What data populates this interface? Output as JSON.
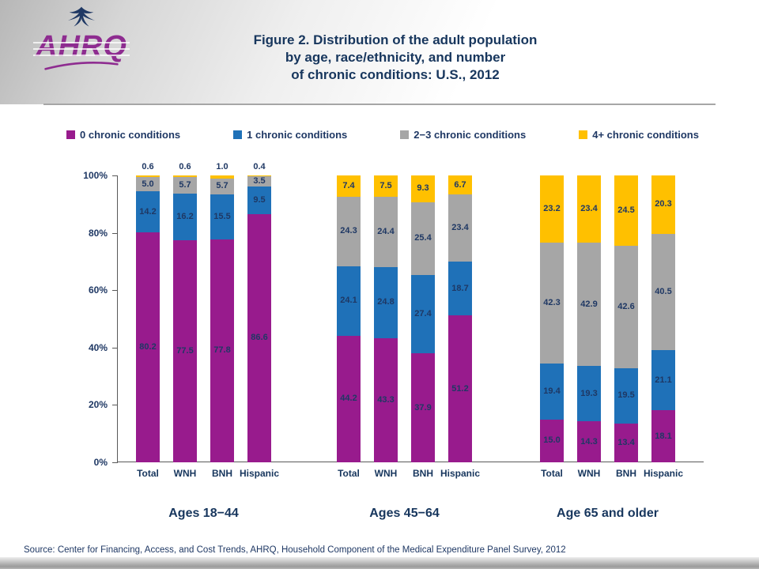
{
  "colors": {
    "brand_purple": "#8E2C90",
    "title_navy": "#17365D",
    "label_navy": "#1F3864",
    "series": [
      "#981B8D",
      "#1F71B8",
      "#A6A6A6",
      "#FFC000"
    ]
  },
  "header": {
    "logo_text": "AHRQ",
    "title_lines": [
      "Figure 2. Distribution of the adult population",
      "by age, race/ethnicity, and number",
      "of chronic conditions: U.S., 2012"
    ]
  },
  "legend": [
    {
      "label": "0 chronic conditions",
      "color": "#981B8D"
    },
    {
      "label": "1 chronic conditions",
      "color": "#1F71B8"
    },
    {
      "label": "2−3 chronic conditions",
      "color": "#A6A6A6"
    },
    {
      "label": "4+ chronic conditions",
      "color": "#FFC000"
    }
  ],
  "chart_data": {
    "type": "bar",
    "stacked": true,
    "title": "Figure 2. Distribution of the adult population by age, race/ethnicity, and number of chronic conditions: U.S., 2012",
    "ylim": [
      0,
      100
    ],
    "yticks": [
      0,
      20,
      40,
      60,
      80,
      100
    ],
    "ytick_suffix": "%",
    "grid": false,
    "legend_position": "top",
    "categories": [
      "Total",
      "WNH",
      "BNH",
      "Hispanic"
    ],
    "series_names": [
      "0 chronic conditions",
      "1 chronic conditions",
      "2−3 chronic conditions",
      "4+ chronic conditions"
    ],
    "colors": [
      "#981B8D",
      "#1F71B8",
      "#A6A6A6",
      "#FFC000"
    ],
    "groups": [
      {
        "label": "Ages 18−44",
        "series": [
          {
            "name": "0 chronic conditions",
            "values": [
              80.2,
              77.5,
              77.8,
              86.6
            ]
          },
          {
            "name": "1 chronic conditions",
            "values": [
              14.2,
              16.2,
              15.5,
              9.5
            ]
          },
          {
            "name": "2−3 chronic conditions",
            "values": [
              5.0,
              5.7,
              5.7,
              3.5
            ]
          },
          {
            "name": "4+ chronic conditions",
            "values": [
              0.6,
              0.6,
              1.0,
              0.4
            ]
          }
        ]
      },
      {
        "label": "Ages 45−64",
        "series": [
          {
            "name": "0 chronic conditions",
            "values": [
              44.2,
              43.3,
              37.9,
              51.2
            ]
          },
          {
            "name": "1 chronic conditions",
            "values": [
              24.1,
              24.8,
              27.4,
              18.7
            ]
          },
          {
            "name": "2−3 chronic conditions",
            "values": [
              24.3,
              24.4,
              25.4,
              23.4
            ]
          },
          {
            "name": "4+ chronic conditions",
            "values": [
              7.4,
              7.5,
              9.3,
              6.7
            ]
          }
        ]
      },
      {
        "label": "Age 65 and older",
        "series": [
          {
            "name": "0 chronic conditions",
            "values": [
              15.0,
              14.3,
              13.4,
              18.1
            ]
          },
          {
            "name": "1 chronic conditions",
            "values": [
              19.4,
              19.3,
              19.5,
              21.1
            ]
          },
          {
            "name": "2−3 chronic conditions",
            "values": [
              42.3,
              42.9,
              42.6,
              40.5
            ]
          },
          {
            "name": "4+ chronic conditions",
            "values": [
              23.2,
              23.4,
              24.5,
              20.3
            ]
          }
        ]
      }
    ]
  },
  "footer": {
    "source": "Source: Center for Financing, Access, and Cost Trends, AHRQ, Household Component of the Medical Expenditure Panel Survey, 2012"
  }
}
